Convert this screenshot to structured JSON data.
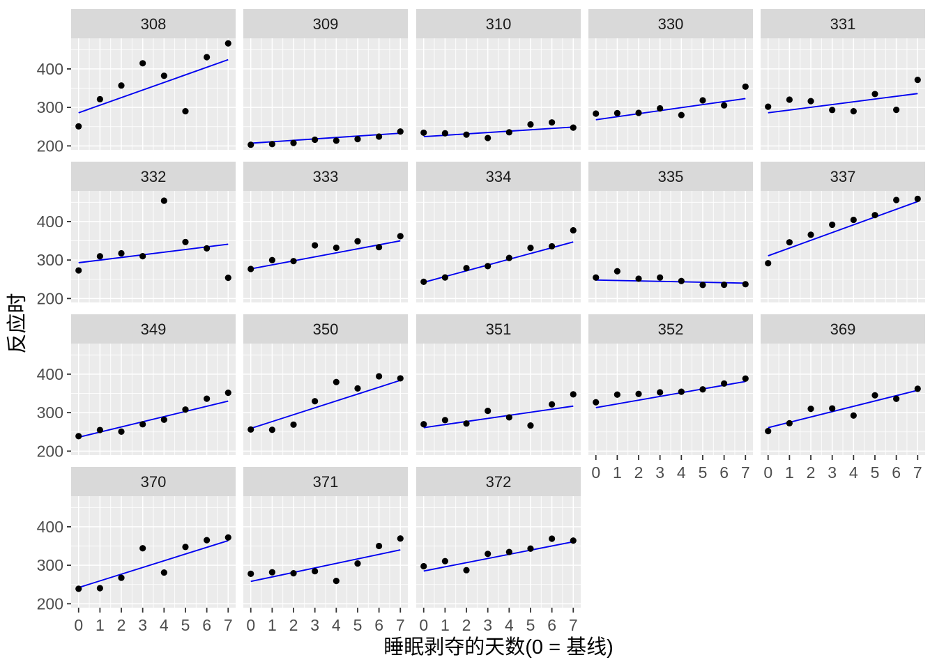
{
  "chart_data": {
    "type": "scatter",
    "title": "",
    "xlabel": "睡眠剥夺的天数(0 = 基线)",
    "ylabel": "反应时",
    "x": [
      0,
      1,
      2,
      3,
      4,
      5,
      6,
      7
    ],
    "xlim": [
      -0.35,
      7.35
    ],
    "ylim": [
      189.8,
      479.5
    ],
    "x_ticks": [
      0,
      1,
      2,
      3,
      4,
      5,
      6,
      7
    ],
    "x_minor_ticks": [
      0.5,
      1.5,
      2.5,
      3.5,
      4.5,
      5.5,
      6.5
    ],
    "y_ticks": [
      200,
      300,
      400
    ],
    "y_minor_ticks": [
      250,
      350,
      450
    ],
    "grid": "major-and-minor-white-on-grey",
    "legend_position": "none",
    "facet_layout": {
      "columns": 5,
      "rows": 4,
      "last_row_facets": 3
    },
    "facets": [
      {
        "id": "308",
        "points": [
          250.8,
          321.4,
          356.9,
          414.7,
          382.2,
          290.1,
          430.6,
          466.4
        ],
        "trend": [
          286,
          424
        ]
      },
      {
        "id": "309",
        "points": [
          203.0,
          204.7,
          207.7,
          216.0,
          213.6,
          217.7,
          224.3,
          237.3
        ],
        "trend": [
          207,
          233
        ]
      },
      {
        "id": "310",
        "points": [
          234.3,
          232.8,
          229.3,
          220.5,
          235.4,
          255.8,
          261.0,
          247.5
        ],
        "trend": [
          224,
          249
        ]
      },
      {
        "id": "330",
        "points": [
          283.9,
          285.1,
          285.8,
          297.6,
          280.2,
          318.3,
          305.3,
          354.0
        ],
        "trend": [
          268,
          323
        ]
      },
      {
        "id": "331",
        "points": [
          301.8,
          320.1,
          316.3,
          293.3,
          290.1,
          334.8,
          293.7,
          371.6
        ],
        "trend": [
          286,
          336
        ]
      },
      {
        "id": "332",
        "points": [
          273.0,
          309.8,
          317.5,
          310.0,
          454.2,
          346.8,
          330.3,
          253.9
        ],
        "trend": [
          293,
          341
        ]
      },
      {
        "id": "333",
        "points": [
          276.8,
          299.8,
          297.2,
          338.2,
          332.0,
          348.8,
          333.4,
          362.0
        ],
        "trend": [
          277,
          350
        ]
      },
      {
        "id": "334",
        "points": [
          243.4,
          254.7,
          279.0,
          284.2,
          305.5,
          331.5,
          335.7,
          377.3
        ],
        "trend": [
          242,
          347
        ]
      },
      {
        "id": "335",
        "points": [
          254.5,
          270.8,
          251.5,
          254.6,
          245.5,
          235.3,
          235.8,
          237.2
        ],
        "trend": [
          248,
          240
        ]
      },
      {
        "id": "337",
        "points": [
          291.6,
          346.1,
          365.7,
          391.8,
          404.3,
          416.7,
          455.9,
          458.9
        ],
        "trend": [
          311,
          452
        ]
      },
      {
        "id": "349",
        "points": [
          238.9,
          254.9,
          250.7,
          269.8,
          281.6,
          308.1,
          336.3,
          351.6
        ],
        "trend": [
          236,
          330
        ]
      },
      {
        "id": "350",
        "points": [
          256.2,
          255.5,
          268.9,
          329.7,
          379.4,
          362.9,
          394.5,
          389.1
        ],
        "trend": [
          259,
          384
        ]
      },
      {
        "id": "351",
        "points": [
          269.9,
          280.6,
          271.8,
          304.6,
          287.7,
          266.6,
          321.5,
          347.6
        ],
        "trend": [
          261,
          317
        ]
      },
      {
        "id": "352",
        "points": [
          326.9,
          346.9,
          348.7,
          352.8,
          354.4,
          360.4,
          375.6,
          388.5
        ],
        "trend": [
          313,
          381
        ]
      },
      {
        "id": "369",
        "points": [
          252.0,
          272.5,
          310.0,
          311.0,
          292.5,
          345.0,
          336.0,
          362.0
        ],
        "trend": [
          261,
          358
        ]
      },
      {
        "id": "370",
        "points": [
          238.9,
          240.5,
          267.5,
          344.2,
          281.1,
          347.6,
          365.2,
          372.2
        ],
        "trend": [
          242,
          364
        ]
      },
      {
        "id": "371",
        "points": [
          277.9,
          281.8,
          279.2,
          284.5,
          259.3,
          304.6,
          350.1,
          369.5
        ],
        "trend": [
          258,
          340
        ]
      },
      {
        "id": "372",
        "points": [
          297.6,
          310.6,
          287.2,
          329.6,
          334.5,
          343.2,
          369.1,
          364.1
        ],
        "trend": [
          285,
          361
        ]
      }
    ],
    "colors": {
      "background": "#FFFFFF",
      "panel_background": "#EBEBEB",
      "strip_background": "#D9D9D9",
      "grid_line": "#FFFFFF",
      "point": "#000000",
      "trend_line": "#0000F0",
      "axis_text": "#4D4D4D",
      "strip_text": "#1A1A1A",
      "axis_title_text": "#000000",
      "tick_mark": "#333333"
    }
  }
}
